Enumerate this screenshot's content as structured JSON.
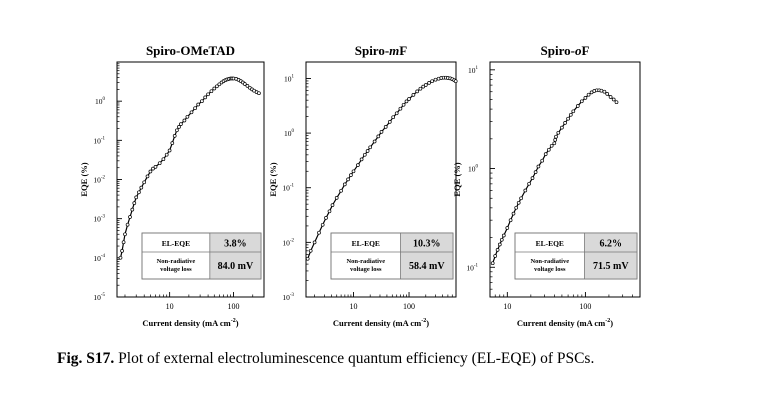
{
  "caption": {
    "label": "Fig. S17.",
    "text": " Plot of external electroluminescence quantum efficiency (EL-EQE) of PSCs."
  },
  "chart_data": [
    {
      "type": "scatter",
      "title": "Spiro-OMeTAD",
      "title_parts": [
        {
          "text": "Spiro-OMeTAD",
          "italic": false
        }
      ],
      "xlabel": "Current density (mA cm",
      "xlabel_sup": "-2",
      "xlabel_end": ")",
      "ylabel": "EQE (%)",
      "x_scale": "log",
      "y_scale": "log",
      "xlim": [
        1.5,
        300
      ],
      "ylim": [
        1e-05,
        10
      ],
      "x_ticks": [
        {
          "value": 10,
          "label": "10"
        },
        {
          "value": 100,
          "label": "100"
        }
      ],
      "y_ticks": [
        {
          "value": 1e-05,
          "mant": "10",
          "exp": "-5"
        },
        {
          "value": 0.0001,
          "mant": "10",
          "exp": "-4"
        },
        {
          "value": 0.001,
          "mant": "10",
          "exp": "-3"
        },
        {
          "value": 0.01,
          "mant": "10",
          "exp": "-2"
        },
        {
          "value": 0.1,
          "mant": "10",
          "exp": "-1"
        },
        {
          "value": 1,
          "mant": "10",
          "exp": "0"
        }
      ],
      "points": [
        [
          1.7,
          0.0001
        ],
        [
          1.8,
          0.00015
        ],
        [
          1.9,
          0.00025
        ],
        [
          2.0,
          0.0004
        ],
        [
          2.2,
          0.0007
        ],
        [
          2.4,
          0.0011
        ],
        [
          2.6,
          0.0017
        ],
        [
          2.8,
          0.0025
        ],
        [
          3.0,
          0.0035
        ],
        [
          3.3,
          0.0047
        ],
        [
          3.6,
          0.0062
        ],
        [
          4.0,
          0.0085
        ],
        [
          4.5,
          0.012
        ],
        [
          5.0,
          0.016
        ],
        [
          5.5,
          0.019
        ],
        [
          6.0,
          0.021
        ],
        [
          7.0,
          0.026
        ],
        [
          8.0,
          0.033
        ],
        [
          9.0,
          0.043
        ],
        [
          10.0,
          0.055
        ],
        [
          11.0,
          0.085
        ],
        [
          12.0,
          0.13
        ],
        [
          13.0,
          0.18
        ],
        [
          14.0,
          0.22
        ],
        [
          15.0,
          0.26
        ],
        [
          17.0,
          0.32
        ],
        [
          19.0,
          0.4
        ],
        [
          22.0,
          0.52
        ],
        [
          25.0,
          0.66
        ],
        [
          28.0,
          0.82
        ],
        [
          32.0,
          1.0
        ],
        [
          36.0,
          1.25
        ],
        [
          40.0,
          1.5
        ],
        [
          45.0,
          1.8
        ],
        [
          50.0,
          2.1
        ],
        [
          55.0,
          2.4
        ],
        [
          60.0,
          2.7
        ],
        [
          65.0,
          3.0
        ],
        [
          70.0,
          3.25
        ],
        [
          75.0,
          3.45
        ],
        [
          80.0,
          3.6
        ],
        [
          85.0,
          3.7
        ],
        [
          90.0,
          3.78
        ],
        [
          95.0,
          3.8
        ],
        [
          100.0,
          3.8
        ],
        [
          110.0,
          3.7
        ],
        [
          120.0,
          3.5
        ],
        [
          130.0,
          3.25
        ],
        [
          140.0,
          3.0
        ],
        [
          150.0,
          2.75
        ],
        [
          165.0,
          2.45
        ],
        [
          180.0,
          2.2
        ],
        [
          195.0,
          2.0
        ],
        [
          210.0,
          1.85
        ],
        [
          230.0,
          1.7
        ],
        [
          250.0,
          1.6
        ]
      ],
      "table": [
        {
          "label": "EL-EQE",
          "value": "3.8%"
        },
        {
          "label": "Non-radiative voltage loss",
          "value": "84.0 mV"
        }
      ]
    },
    {
      "type": "scatter",
      "title": "Spiro-mF",
      "title_parts": [
        {
          "text": "Spiro-",
          "italic": false
        },
        {
          "text": "m",
          "italic": true
        },
        {
          "text": "F",
          "italic": false
        }
      ],
      "xlabel": "Current density (mA cm",
      "xlabel_sup": "-2",
      "xlabel_end": ")",
      "ylabel": "EQE (%)",
      "x_scale": "log",
      "y_scale": "log",
      "xlim": [
        1.4,
        700
      ],
      "ylim": [
        0.001,
        20
      ],
      "x_ticks": [
        {
          "value": 10,
          "label": "10"
        },
        {
          "value": 100,
          "label": "100"
        }
      ],
      "y_ticks": [
        {
          "value": 0.001,
          "mant": "10",
          "exp": "-3"
        },
        {
          "value": 0.01,
          "mant": "10",
          "exp": "-2"
        },
        {
          "value": 0.1,
          "mant": "10",
          "exp": "-1"
        },
        {
          "value": 1,
          "mant": "10",
          "exp": "0"
        },
        {
          "value": 10,
          "mant": "10",
          "exp": "1"
        }
      ],
      "points": [
        [
          1.5,
          0.005
        ],
        [
          1.7,
          0.007
        ],
        [
          2.0,
          0.01
        ],
        [
          2.4,
          0.015
        ],
        [
          2.8,
          0.021
        ],
        [
          3.2,
          0.028
        ],
        [
          3.7,
          0.037
        ],
        [
          4.2,
          0.048
        ],
        [
          5.0,
          0.065
        ],
        [
          6.0,
          0.088
        ],
        [
          7.0,
          0.115
        ],
        [
          8.0,
          0.142
        ],
        [
          9.0,
          0.17
        ],
        [
          10.0,
          0.2
        ],
        [
          12.0,
          0.26
        ],
        [
          14.0,
          0.33
        ],
        [
          16.0,
          0.4
        ],
        [
          18.0,
          0.47
        ],
        [
          20.0,
          0.55
        ],
        [
          24.0,
          0.7
        ],
        [
          28.0,
          0.87
        ],
        [
          32.0,
          1.05
        ],
        [
          38.0,
          1.3
        ],
        [
          45.0,
          1.6
        ],
        [
          52.0,
          1.95
        ],
        [
          60.0,
          2.3
        ],
        [
          70.0,
          2.8
        ],
        [
          80.0,
          3.3
        ],
        [
          90.0,
          3.8
        ],
        [
          100.0,
          4.2
        ],
        [
          120.0,
          5.0
        ],
        [
          140.0,
          5.8
        ],
        [
          160.0,
          6.5
        ],
        [
          180.0,
          7.1
        ],
        [
          200.0,
          7.6
        ],
        [
          230.0,
          8.3
        ],
        [
          260.0,
          8.9
        ],
        [
          300.0,
          9.5
        ],
        [
          340.0,
          9.9
        ],
        [
          380.0,
          10.2
        ],
        [
          420.0,
          10.3
        ],
        [
          460.0,
          10.3
        ],
        [
          500.0,
          10.2
        ],
        [
          550.0,
          10.0
        ],
        [
          600.0,
          9.7
        ],
        [
          650.0,
          9.3
        ],
        [
          690.0,
          8.9
        ]
      ],
      "table": [
        {
          "label": "EL-EQE",
          "value": "10.3%"
        },
        {
          "label": "Non-radiative voltage loss",
          "value": "58.4 mV"
        }
      ]
    },
    {
      "type": "scatter",
      "title": "Spiro-oF",
      "title_parts": [
        {
          "text": "Spiro-",
          "italic": false
        },
        {
          "text": "o",
          "italic": true
        },
        {
          "text": "F",
          "italic": false
        }
      ],
      "xlabel": "Current density (mA cm",
      "xlabel_sup": "-2",
      "xlabel_end": ")",
      "ylabel": "EQE (%)",
      "x_scale": "log",
      "y_scale": "log",
      "xlim": [
        6,
        500
      ],
      "ylim": [
        0.05,
        12
      ],
      "x_ticks": [
        {
          "value": 10,
          "label": "10"
        },
        {
          "value": 100,
          "label": "100"
        }
      ],
      "y_ticks": [
        {
          "value": 0.1,
          "mant": "10",
          "exp": "-1"
        },
        {
          "value": 1,
          "mant": "10",
          "exp": "0"
        },
        {
          "value": 10,
          "mant": "10",
          "exp": "1"
        }
      ],
      "points": [
        [
          6.5,
          0.11
        ],
        [
          7.0,
          0.13
        ],
        [
          7.5,
          0.15
        ],
        [
          8.0,
          0.17
        ],
        [
          8.5,
          0.19
        ],
        [
          9.0,
          0.21
        ],
        [
          10.0,
          0.25
        ],
        [
          11.0,
          0.3
        ],
        [
          12.0,
          0.35
        ],
        [
          13.0,
          0.4
        ],
        [
          14.0,
          0.45
        ],
        [
          15.0,
          0.5
        ],
        [
          17.0,
          0.6
        ],
        [
          19.0,
          0.7
        ],
        [
          21.0,
          0.8
        ],
        [
          23.0,
          0.92
        ],
        [
          25.0,
          1.05
        ],
        [
          28.0,
          1.2
        ],
        [
          31.0,
          1.4
        ],
        [
          34.0,
          1.55
        ],
        [
          37.0,
          1.7
        ],
        [
          40.0,
          1.8
        ],
        [
          41.0,
          1.95
        ],
        [
          42.0,
          2.1
        ],
        [
          45.0,
          2.3
        ],
        [
          50.0,
          2.6
        ],
        [
          55.0,
          2.9
        ],
        [
          60.0,
          3.2
        ],
        [
          65.0,
          3.5
        ],
        [
          70.0,
          3.8
        ],
        [
          80.0,
          4.3
        ],
        [
          90.0,
          4.8
        ],
        [
          100.0,
          5.2
        ],
        [
          110.0,
          5.6
        ],
        [
          120.0,
          5.9
        ],
        [
          130.0,
          6.1
        ],
        [
          140.0,
          6.2
        ],
        [
          150.0,
          6.2
        ],
        [
          160.0,
          6.15
        ],
        [
          175.0,
          6.0
        ],
        [
          190.0,
          5.7
        ],
        [
          210.0,
          5.3
        ],
        [
          230.0,
          5.0
        ],
        [
          250.0,
          4.7
        ]
      ],
      "table": [
        {
          "label": "EL-EQE",
          "value": "6.2%"
        },
        {
          "label": "Non-radiative voltage loss",
          "value": "71.5 mV"
        }
      ]
    }
  ]
}
